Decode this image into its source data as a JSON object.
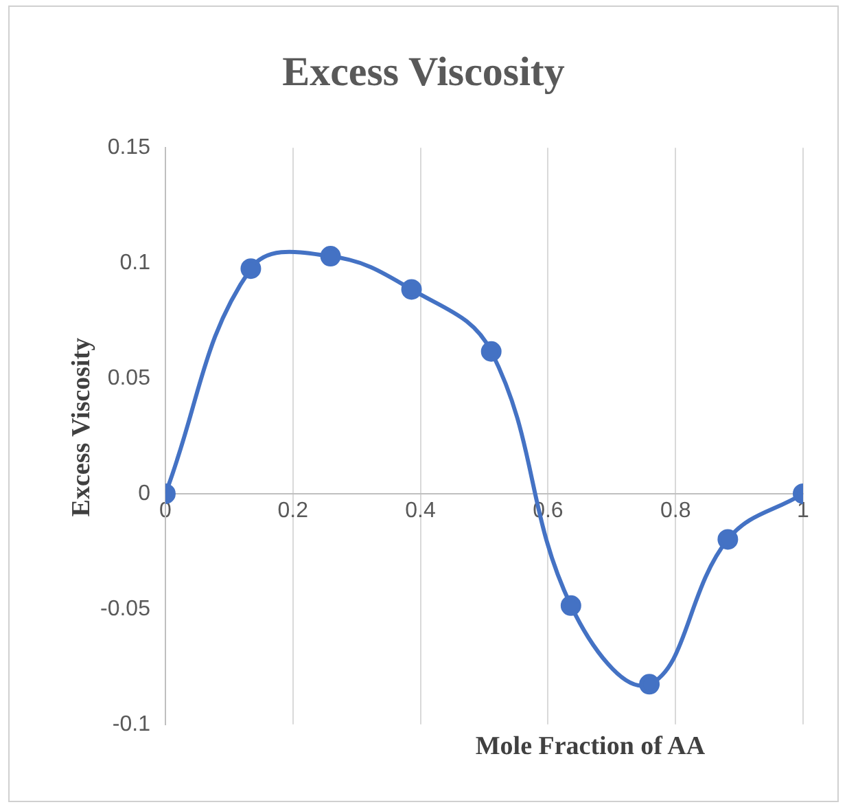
{
  "chart_data": {
    "type": "line",
    "title": "Excess Viscosity",
    "xlabel": "Mole Fraction of AA",
    "ylabel": "Excess Viscosity",
    "x": [
      0,
      0.134,
      0.259,
      0.386,
      0.511,
      0.636,
      0.759,
      0.882,
      1
    ],
    "series": [
      {
        "color": "#4472c4",
        "values": [
          0,
          0.0976,
          0.103,
          0.0886,
          0.0617,
          -0.0485,
          -0.0826,
          -0.0198,
          0
        ]
      }
    ],
    "xlim": [
      0,
      1
    ],
    "xticks": [
      {
        "value": 0,
        "label": "0"
      },
      0.2,
      0.4,
      0.6,
      0.8,
      1
    ],
    "ylim": [
      -0.1,
      0.15
    ],
    "yticks": [
      -0.1,
      -0.05,
      {
        "value": 0,
        "label": "0"
      },
      0.05,
      0.1,
      0.15
    ],
    "grid": "x",
    "marker": "circle",
    "line_style": "solid",
    "legend": false
  }
}
